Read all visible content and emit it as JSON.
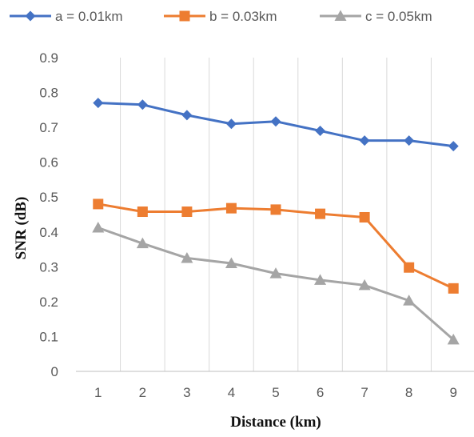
{
  "chart_data": {
    "type": "line",
    "title": "",
    "xlabel": "Distance (km)",
    "ylabel": "SNR (dB)",
    "x": [
      1,
      2,
      3,
      4,
      5,
      6,
      7,
      8,
      9
    ],
    "x_tick_labels": [
      "1",
      "2",
      "3",
      "4",
      "5",
      "6",
      "7",
      "8",
      "9"
    ],
    "ylim": [
      0,
      0.9
    ],
    "y_tick_labels": [
      "0",
      "0.1",
      "0.2",
      "0.3",
      "0.4",
      "0.5",
      "0.6",
      "0.7",
      "0.8",
      "0.9"
    ],
    "vertical_grid": true,
    "horizontal_grid": false,
    "legend_position": "top",
    "series": [
      {
        "name": "a = 0.01km",
        "marker": "diamond",
        "color": "#4472C4",
        "values": [
          0.77,
          0.765,
          0.735,
          0.71,
          0.717,
          0.69,
          0.662,
          0.662,
          0.646
        ]
      },
      {
        "name": "b = 0.03km",
        "marker": "square",
        "color": "#ED7D31",
        "values": [
          0.48,
          0.458,
          0.458,
          0.468,
          0.464,
          0.452,
          0.442,
          0.298,
          0.238
        ]
      },
      {
        "name": "c = 0.05km",
        "marker": "triangle",
        "color": "#A5A5A5",
        "values": [
          0.412,
          0.367,
          0.325,
          0.31,
          0.281,
          0.262,
          0.247,
          0.203,
          0.091
        ]
      }
    ]
  }
}
